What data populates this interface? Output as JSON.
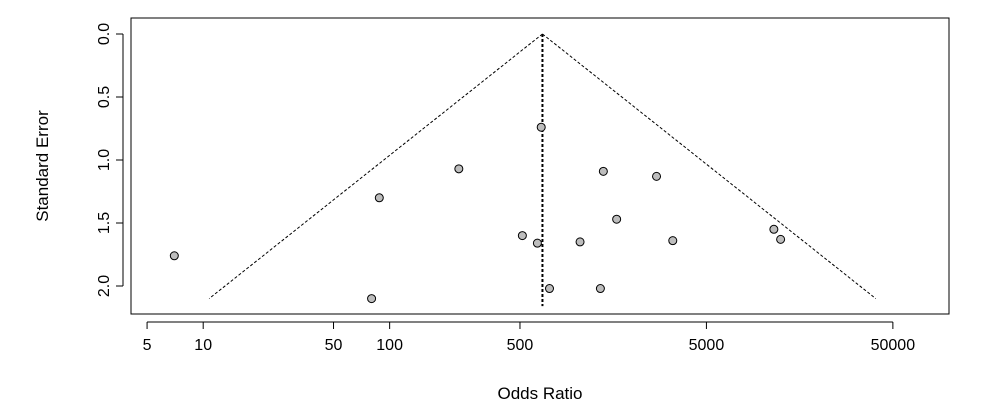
{
  "chart_data": {
    "type": "scatter",
    "title": "",
    "xlabel": "Odds Ratio",
    "ylabel": "Standard Error",
    "x_scale": "log",
    "y_reversed": true,
    "xlim": [
      4.1,
      100000
    ],
    "ylim": [
      0.0,
      2.15
    ],
    "x_ticks": [
      5,
      10,
      50,
      100,
      500,
      5000,
      50000
    ],
    "x_tick_labels": [
      "5",
      "10",
      "50",
      "100",
      "500",
      "5000",
      "50000"
    ],
    "y_ticks": [
      0.0,
      0.5,
      1.0,
      1.5,
      2.0
    ],
    "y_tick_labels": [
      "0.0",
      "0.5",
      "1.0",
      "1.5",
      "2.0"
    ],
    "summary_estimate": 660,
    "ci_z": 1.96,
    "points": [
      {
        "x": 7,
        "y": 1.76
      },
      {
        "x": 80,
        "y": 2.1
      },
      {
        "x": 88,
        "y": 1.3
      },
      {
        "x": 235,
        "y": 1.07
      },
      {
        "x": 515,
        "y": 1.6
      },
      {
        "x": 620,
        "y": 1.66
      },
      {
        "x": 650,
        "y": 0.74
      },
      {
        "x": 720,
        "y": 2.02
      },
      {
        "x": 1050,
        "y": 1.65
      },
      {
        "x": 1350,
        "y": 2.02
      },
      {
        "x": 1400,
        "y": 1.09
      },
      {
        "x": 1650,
        "y": 1.47
      },
      {
        "x": 2700,
        "y": 1.13
      },
      {
        "x": 3300,
        "y": 1.64
      },
      {
        "x": 11500,
        "y": 1.55
      },
      {
        "x": 12500,
        "y": 1.63
      }
    ],
    "colors": {
      "point_fill": "#bdbdbd",
      "stroke": "#000000",
      "background": "#ffffff"
    }
  }
}
